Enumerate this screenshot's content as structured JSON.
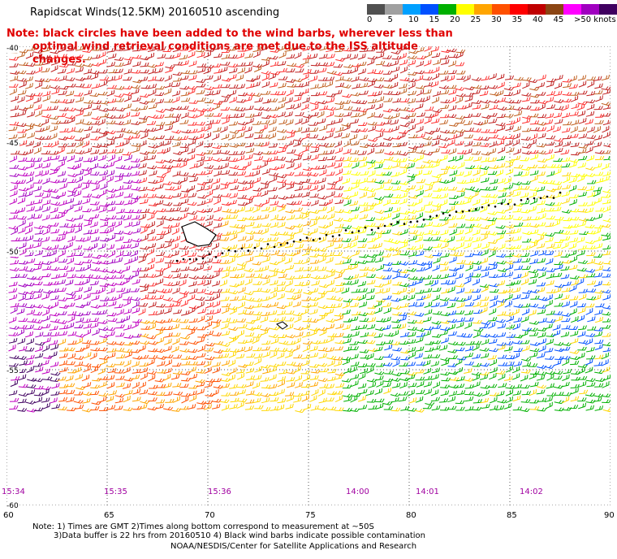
{
  "header": {
    "title": "Rapidscat Winds(12.5KM) 20160510 ascending",
    "note_line1": "Note: black circles have been added to the wind barbs, wherever less than",
    "note_line2": "optimal wind retrieval conditions are met due to the ISS altitude changes."
  },
  "colorbar": {
    "labels": [
      "0",
      "5",
      "10",
      "15",
      "20",
      "25",
      "30",
      "35",
      "40",
      "45",
      ">50 knots"
    ],
    "colors": [
      "#505050",
      "#a0a0a0",
      "#00a0ff",
      "#0050ff",
      "#00b000",
      "#ffff00",
      "#ffa500",
      "#ff5000",
      "#ff0000",
      "#c00000",
      "#8b4513",
      "#ff00ff",
      "#a000c0",
      "#400060"
    ]
  },
  "map": {
    "lat_labels": [
      "-40",
      "-45",
      "-50",
      "-55",
      "-60"
    ],
    "lon_labels": [
      "60",
      "65",
      "70",
      "75",
      "80",
      "85",
      "90"
    ],
    "time_labels": [
      "15:34",
      "15:35",
      "15:36",
      "14:00",
      "14:01",
      "14:02"
    ],
    "lon_range": [
      60,
      90
    ],
    "lat_range": [
      -40,
      -60
    ]
  },
  "footer": {
    "footnote1": "Note: 1) Times are GMT 2)Times along bottom correspond to measurement at ~50S",
    "footnote2": "3)Data buffer is 22 hrs from 20160510 4) Black wind barbs indicate possible contamination",
    "credit": "NOAA/NESDIS/Center for Satellite Applications and Research"
  }
}
